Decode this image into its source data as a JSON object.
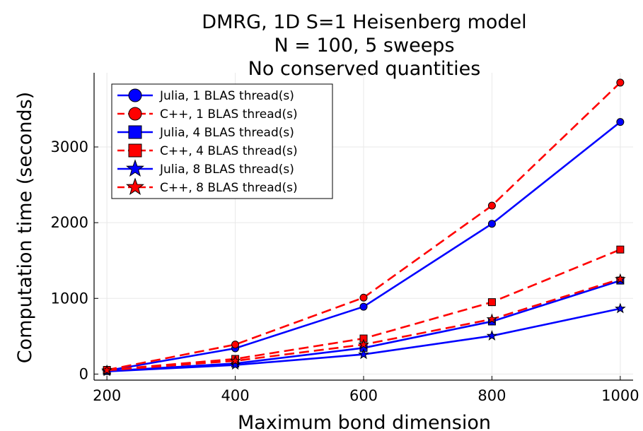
{
  "chart_data": {
    "type": "line",
    "title_lines": [
      "DMRG, 1D S=1 Heisenberg model",
      "N = 100, 5 sweeps",
      "No conserved quantities"
    ],
    "xlabel": "Maximum bond dimension",
    "ylabel": "Computation time (seconds)",
    "x": [
      200,
      400,
      600,
      800,
      1000
    ],
    "xticks": [
      200,
      400,
      600,
      800,
      1000
    ],
    "yticks": [
      0,
      1000,
      2000,
      3000
    ],
    "xlim": [
      180,
      1020
    ],
    "ylim": [
      -80,
      3980
    ],
    "grid": true,
    "legend_position": "top-left",
    "series": [
      {
        "name": "Julia, 1 BLAS thread(s)",
        "color": "#0000ff",
        "style": "solid",
        "marker": "circle",
        "values": [
          45,
          340,
          890,
          1985,
          3330
        ]
      },
      {
        "name": "C++, 1 BLAS thread(s)",
        "color": "#ff0000",
        "style": "dashed",
        "marker": "circle",
        "values": [
          55,
          390,
          1010,
          2225,
          3850
        ]
      },
      {
        "name": "Julia, 4 BLAS thread(s)",
        "color": "#0000ff",
        "style": "solid",
        "marker": "square",
        "values": [
          40,
          140,
          345,
          695,
          1235
        ]
      },
      {
        "name": "C++, 4 BLAS thread(s)",
        "color": "#ff0000",
        "style": "dashed",
        "marker": "square",
        "values": [
          55,
          200,
          470,
          950,
          1645
        ]
      },
      {
        "name": "Julia, 8 BLAS thread(s)",
        "color": "#0000ff",
        "style": "solid",
        "marker": "star",
        "values": [
          35,
          120,
          260,
          505,
          865
        ]
      },
      {
        "name": "C++, 8 BLAS thread(s)",
        "color": "#ff0000",
        "style": "dashed",
        "marker": "star",
        "values": [
          50,
          175,
          390,
          725,
          1255
        ]
      }
    ]
  }
}
